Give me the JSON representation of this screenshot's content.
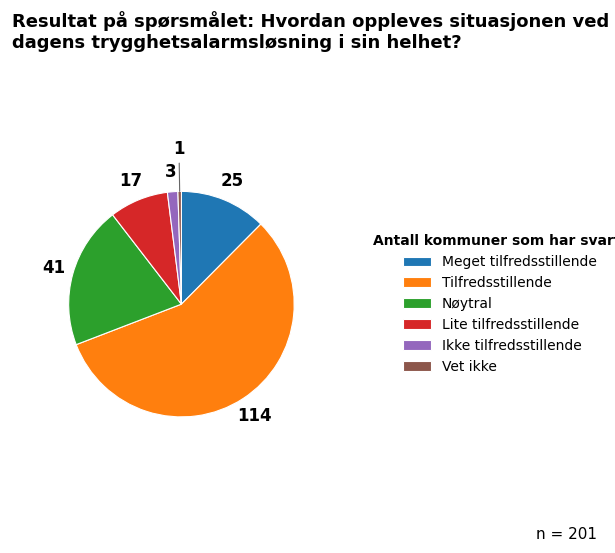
{
  "chart_data": {
    "type": "pie",
    "title": "Resultat på spørsmålet: Hvordan oppleves situasjonen ved dagens trygghetsalarmsløsning i sin helhet?",
    "categories": [
      "Meget tilfredsstillende",
      "Tilfredsstillende",
      "Nøytral",
      "Lite tilfredsstillende",
      "Ikke tilfredsstillende",
      "Vet ikke"
    ],
    "values": [
      25,
      114,
      41,
      17,
      3,
      1
    ],
    "data_labels": true,
    "legend": "center left",
    "legend_title": "Antall kommuner som har svart:",
    "annotations": [
      "n = 201"
    ]
  }
}
